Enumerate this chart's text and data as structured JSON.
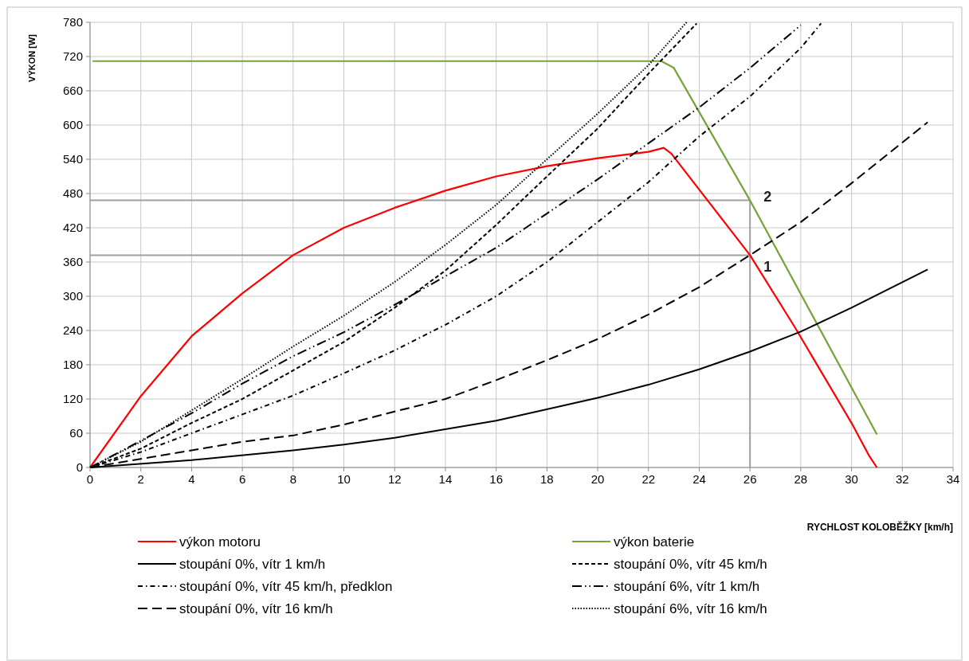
{
  "chart_data": {
    "type": "line",
    "xlabel": "RYCHLOST KOLOBĚŽKY [km/h]",
    "ylabel": "VÝKON [W]",
    "xlim": [
      0,
      34
    ],
    "xticks": [
      0,
      2,
      4,
      6,
      8,
      10,
      12,
      14,
      16,
      18,
      20,
      22,
      24,
      26,
      28,
      30,
      32,
      34
    ],
    "ylim": [
      0,
      780
    ],
    "yticks": [
      0,
      60,
      120,
      180,
      240,
      300,
      360,
      420,
      480,
      540,
      600,
      660,
      720,
      780
    ],
    "grid": true,
    "legend": "bottom",
    "series": [
      {
        "name": "výkon motoru",
        "color": "#ff0000",
        "line_style": "solid",
        "x": [
          0,
          2,
          4,
          6,
          8,
          10,
          12,
          14,
          16,
          18,
          20,
          22,
          22.6,
          22.9,
          26,
          27.75,
          30,
          30.7,
          31
        ],
        "values": [
          0,
          125,
          230,
          305,
          372,
          420,
          455,
          485,
          510,
          528,
          542,
          553,
          560,
          550,
          372,
          247,
          78,
          20,
          0
        ]
      },
      {
        "name": "výkon baterie",
        "color": "#77a33a",
        "line_style": "solid",
        "x": [
          0.1,
          22.5,
          22.8,
          23,
          26,
          31
        ],
        "values": [
          712,
          712,
          705,
          700,
          468,
          58
        ]
      },
      {
        "name": "stoupání 0%, vítr 1 km/h",
        "color": "#000000",
        "line_style": "solid",
        "x": [
          0,
          4,
          8,
          10,
          12,
          16,
          20,
          22,
          24,
          26,
          28,
          30,
          33
        ],
        "values": [
          0,
          13,
          30,
          40,
          52,
          82,
          122,
          145,
          172,
          203,
          238,
          280,
          347
        ]
      },
      {
        "name": "stoupání 0%, vítr 45 km/h",
        "color": "#000000",
        "line_style": "dashed",
        "x": [
          0,
          2,
          4,
          6,
          8,
          10,
          12,
          14,
          16,
          18,
          20,
          22,
          23.9
        ],
        "values": [
          0,
          33,
          78,
          120,
          170,
          220,
          280,
          345,
          425,
          510,
          594,
          690,
          778
        ]
      },
      {
        "name": "stoupání 0%, vítr 45 km/h, předklon",
        "color": "#000000",
        "line_style": "dashdot",
        "x": [
          0,
          2,
          4,
          6,
          8,
          10,
          12,
          14,
          16,
          18,
          20,
          22,
          24,
          26,
          28,
          28.8
        ],
        "values": [
          0,
          27,
          60,
          93,
          126,
          165,
          205,
          250,
          300,
          360,
          430,
          500,
          580,
          650,
          735,
          778
        ]
      },
      {
        "name": "stoupání 6%, vítr 1 km/h",
        "color": "#000000",
        "line_style": "longdashdotdot",
        "x": [
          0,
          2,
          4,
          6,
          8,
          10,
          12,
          14,
          16,
          18,
          20,
          22,
          24,
          26,
          28
        ],
        "values": [
          0,
          47,
          95,
          147,
          195,
          237,
          285,
          335,
          385,
          445,
          505,
          568,
          631,
          700,
          775
        ]
      },
      {
        "name": "stoupání 0%, vítr 16 km/h",
        "color": "#000000",
        "line_style": "longdash",
        "x": [
          0,
          4,
          6,
          8,
          10,
          12,
          14,
          16,
          18,
          20,
          22,
          24,
          26,
          28,
          30,
          33
        ],
        "values": [
          0,
          30,
          45,
          56,
          75,
          98,
          120,
          153,
          188,
          225,
          268,
          316,
          372,
          430,
          498,
          605
        ]
      },
      {
        "name": "stoupání 6%, vítr 16 km/h",
        "color": "#000000",
        "line_style": "dotted",
        "x": [
          0,
          2,
          4,
          6,
          8,
          10,
          12,
          14,
          16,
          18,
          20,
          22,
          23.5
        ],
        "values": [
          0,
          45,
          100,
          155,
          212,
          266,
          325,
          390,
          460,
          540,
          620,
          705,
          780
        ]
      }
    ],
    "ref_lines": [
      {
        "axis": "y",
        "value": 372,
        "color": "#a0a0a0"
      },
      {
        "axis": "y",
        "value": 468,
        "color": "#a0a0a0"
      },
      {
        "axis": "x",
        "value": 26,
        "color": "#a0a0a0"
      }
    ],
    "annotations": [
      {
        "text": "1",
        "x": 26,
        "y": 372
      },
      {
        "text": "2",
        "x": 26,
        "y": 468
      }
    ]
  }
}
